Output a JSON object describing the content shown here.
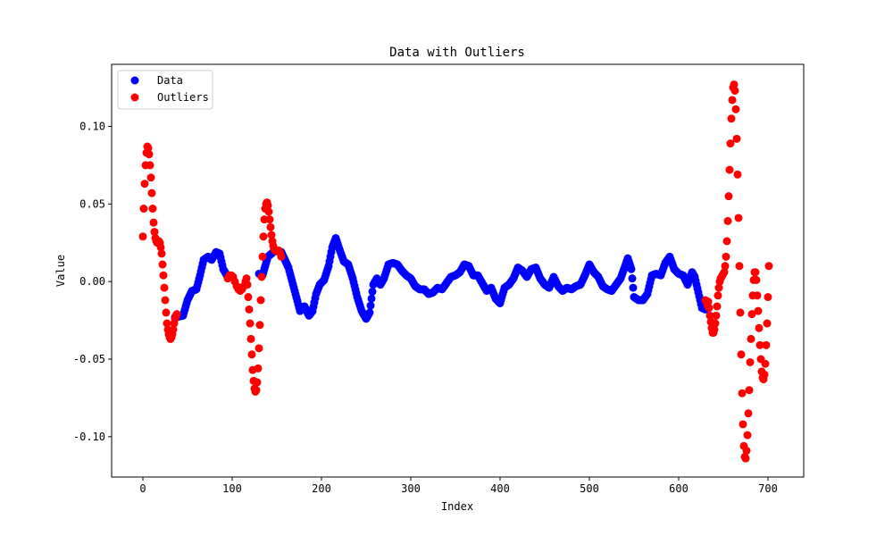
{
  "chart_data": {
    "type": "scatter",
    "title": "Data with Outliers",
    "xlabel": "Index",
    "ylabel": "Value",
    "xlim": [
      -35,
      740
    ],
    "ylim": [
      -0.126,
      0.14
    ],
    "xticks": [
      0,
      100,
      200,
      300,
      400,
      500,
      600,
      700
    ],
    "xtick_labels": [
      "0",
      "100",
      "200",
      "300",
      "400",
      "500",
      "600",
      "700"
    ],
    "yticks": [
      -0.1,
      -0.05,
      0.0,
      0.05,
      0.1
    ],
    "ytick_labels": [
      "-0.10",
      "-0.05",
      "0.00",
      "0.05",
      "0.10"
    ],
    "grid": false,
    "legend_position": "top-left",
    "series": [
      {
        "name": "Data",
        "color": "#0000ff",
        "anchors": [
          [
            36,
            -0.023
          ],
          [
            45,
            -0.022
          ],
          [
            50,
            -0.012
          ],
          [
            55,
            -0.006
          ],
          [
            60,
            -0.005
          ],
          [
            64,
            0.004
          ],
          [
            68,
            0.014
          ],
          [
            73,
            0.016
          ],
          [
            77,
            0.014
          ],
          [
            82,
            0.019
          ],
          [
            86,
            0.018
          ],
          [
            90,
            0.008
          ],
          [
            95,
            0.003
          ],
          [
            130,
            0.005
          ],
          [
            134,
            0.004
          ],
          [
            140,
            0.016
          ],
          [
            148,
            0.02
          ],
          [
            155,
            0.019
          ],
          [
            163,
            0.009
          ],
          [
            170,
            -0.006
          ],
          [
            176,
            -0.019
          ],
          [
            181,
            -0.016
          ],
          [
            186,
            -0.022
          ],
          [
            190,
            -0.019
          ],
          [
            194,
            -0.008
          ],
          [
            198,
            -0.002
          ],
          [
            203,
            0.001
          ],
          [
            208,
            0.01
          ],
          [
            212,
            0.022
          ],
          [
            216,
            0.028
          ],
          [
            220,
            0.021
          ],
          [
            225,
            0.013
          ],
          [
            230,
            0.011
          ],
          [
            235,
            0.002
          ],
          [
            240,
            -0.01
          ],
          [
            245,
            -0.019
          ],
          [
            250,
            -0.024
          ],
          [
            254,
            -0.02
          ],
          [
            258,
            -0.002
          ],
          [
            262,
            0.002
          ],
          [
            266,
            -0.002
          ],
          [
            270,
            0.002
          ],
          [
            275,
            0.011
          ],
          [
            280,
            0.012
          ],
          [
            285,
            0.011
          ],
          [
            290,
            0.007
          ],
          [
            295,
            0.004
          ],
          [
            300,
            0.002
          ],
          [
            305,
            -0.003
          ],
          [
            310,
            -0.005
          ],
          [
            315,
            -0.005
          ],
          [
            320,
            -0.008
          ],
          [
            325,
            -0.007
          ],
          [
            330,
            -0.004
          ],
          [
            335,
            -0.005
          ],
          [
            340,
            -0.001
          ],
          [
            345,
            0.003
          ],
          [
            350,
            0.004
          ],
          [
            355,
            0.006
          ],
          [
            360,
            0.011
          ],
          [
            365,
            0.01
          ],
          [
            370,
            0.004
          ],
          [
            375,
            0.004
          ],
          [
            380,
            -0.001
          ],
          [
            385,
            -0.006
          ],
          [
            390,
            -0.004
          ],
          [
            395,
            -0.011
          ],
          [
            400,
            -0.014
          ],
          [
            405,
            -0.004
          ],
          [
            410,
            -0.002
          ],
          [
            415,
            0.002
          ],
          [
            420,
            0.009
          ],
          [
            425,
            0.007
          ],
          [
            430,
            0.003
          ],
          [
            435,
            0.008
          ],
          [
            440,
            0.009
          ],
          [
            445,
            0.002
          ],
          [
            450,
            -0.002
          ],
          [
            455,
            -0.004
          ],
          [
            460,
            0.003
          ],
          [
            465,
            -0.003
          ],
          [
            470,
            -0.006
          ],
          [
            475,
            -0.004
          ],
          [
            480,
            -0.005
          ],
          [
            485,
            -0.003
          ],
          [
            490,
            -0.002
          ],
          [
            495,
            0.004
          ],
          [
            500,
            0.011
          ],
          [
            505,
            0.006
          ],
          [
            510,
            0.003
          ],
          [
            515,
            -0.003
          ],
          [
            520,
            -0.005
          ],
          [
            525,
            -0.006
          ],
          [
            530,
            -0.002
          ],
          [
            535,
            0.002
          ],
          [
            540,
            0.01
          ],
          [
            543,
            0.015
          ],
          [
            547,
            0.008
          ],
          [
            550,
            -0.01
          ],
          [
            555,
            -0.012
          ],
          [
            560,
            -0.012
          ],
          [
            565,
            -0.008
          ],
          [
            570,
            0.004
          ],
          [
            575,
            0.005
          ],
          [
            580,
            0.004
          ],
          [
            585,
            0.012
          ],
          [
            590,
            0.016
          ],
          [
            595,
            0.008
          ],
          [
            600,
            0.005
          ],
          [
            605,
            0.004
          ],
          [
            610,
            -0.002
          ],
          [
            615,
            0.006
          ],
          [
            618,
            0.003
          ],
          [
            622,
            -0.007
          ],
          [
            626,
            -0.017
          ],
          [
            630,
            -0.018
          ]
        ]
      },
      {
        "name": "Outliers",
        "color": "#ff0000",
        "points": [
          [
            0,
            0.029
          ],
          [
            1,
            0.047
          ],
          [
            2,
            0.063
          ],
          [
            3,
            0.075
          ],
          [
            4,
            0.083
          ],
          [
            5,
            0.087
          ],
          [
            6,
            0.086
          ],
          [
            7,
            0.082
          ],
          [
            8,
            0.075
          ],
          [
            9,
            0.067
          ],
          [
            10,
            0.057
          ],
          [
            11,
            0.047
          ],
          [
            12,
            0.038
          ],
          [
            13,
            0.032
          ],
          [
            14,
            0.028
          ],
          [
            15,
            0.026
          ],
          [
            16,
            0.025
          ],
          [
            17,
            0.025
          ],
          [
            18,
            0.026
          ],
          [
            19,
            0.025
          ],
          [
            20,
            0.022
          ],
          [
            21,
            0.018
          ],
          [
            22,
            0.011
          ],
          [
            23,
            0.004
          ],
          [
            24,
            -0.004
          ],
          [
            25,
            -0.012
          ],
          [
            26,
            -0.02
          ],
          [
            27,
            -0.027
          ],
          [
            28,
            -0.031
          ],
          [
            29,
            -0.034
          ],
          [
            30,
            -0.036
          ],
          [
            31,
            -0.037
          ],
          [
            32,
            -0.036
          ],
          [
            33,
            -0.034
          ],
          [
            34,
            -0.031
          ],
          [
            35,
            -0.027
          ],
          [
            36,
            -0.024
          ],
          [
            37,
            -0.022
          ],
          [
            38,
            -0.021
          ],
          [
            95,
            0.002
          ],
          [
            97,
            0.004
          ],
          [
            99,
            0.004
          ],
          [
            101,
            0.003
          ],
          [
            103,
            0.0
          ],
          [
            105,
            -0.003
          ],
          [
            107,
            -0.005
          ],
          [
            109,
            -0.006
          ],
          [
            111,
            -0.005
          ],
          [
            113,
            -0.003
          ],
          [
            115,
            0.0
          ],
          [
            116,
            0.002
          ],
          [
            117,
            -0.002
          ],
          [
            118,
            -0.01
          ],
          [
            119,
            -0.018
          ],
          [
            120,
            -0.027
          ],
          [
            121,
            -0.037
          ],
          [
            122,
            -0.047
          ],
          [
            123,
            -0.057
          ],
          [
            124,
            -0.064
          ],
          [
            125,
            -0.069
          ],
          [
            126,
            -0.071
          ],
          [
            127,
            -0.07
          ],
          [
            128,
            -0.065
          ],
          [
            129,
            -0.056
          ],
          [
            130,
            -0.043
          ],
          [
            131,
            -0.028
          ],
          [
            132,
            -0.012
          ],
          [
            133,
            0.003
          ],
          [
            134,
            0.016
          ],
          [
            135,
            0.029
          ],
          [
            136,
            0.04
          ],
          [
            137,
            0.047
          ],
          [
            138,
            0.05
          ],
          [
            139,
            0.051
          ],
          [
            140,
            0.049
          ],
          [
            141,
            0.045
          ],
          [
            142,
            0.04
          ],
          [
            143,
            0.035
          ],
          [
            144,
            0.03
          ],
          [
            145,
            0.026
          ],
          [
            146,
            0.023
          ],
          [
            147,
            0.021
          ],
          [
            148,
            0.02
          ],
          [
            149,
            0.02
          ],
          [
            150,
            0.02
          ],
          [
            151,
            0.02
          ],
          [
            152,
            0.02
          ],
          [
            153,
            0.019
          ],
          [
            154,
            0.018
          ],
          [
            155,
            0.016
          ],
          [
            630,
            -0.012
          ],
          [
            631,
            -0.013
          ],
          [
            632,
            -0.015
          ],
          [
            633,
            -0.013
          ],
          [
            634,
            -0.017
          ],
          [
            635,
            -0.022
          ],
          [
            636,
            -0.026
          ],
          [
            637,
            -0.03
          ],
          [
            638,
            -0.033
          ],
          [
            639,
            -0.033
          ],
          [
            640,
            -0.031
          ],
          [
            641,
            -0.027
          ],
          [
            642,
            -0.022
          ],
          [
            643,
            -0.016
          ],
          [
            644,
            -0.009
          ],
          [
            645,
            -0.004
          ],
          [
            646,
            0.0
          ],
          [
            647,
            0.002
          ],
          [
            648,
            0.003
          ],
          [
            649,
            0.004
          ],
          [
            650,
            0.005
          ],
          [
            651,
            0.006
          ],
          [
            652,
            0.01
          ],
          [
            653,
            0.016
          ],
          [
            654,
            0.026
          ],
          [
            655,
            0.039
          ],
          [
            656,
            0.055
          ],
          [
            657,
            0.072
          ],
          [
            658,
            0.089
          ],
          [
            659,
            0.105
          ],
          [
            660,
            0.117
          ],
          [
            661,
            0.125
          ],
          [
            662,
            0.127
          ],
          [
            663,
            0.123
          ],
          [
            664,
            0.111
          ],
          [
            665,
            0.092
          ],
          [
            666,
            0.069
          ],
          [
            667,
            0.041
          ],
          [
            668,
            0.01
          ],
          [
            669,
            -0.02
          ],
          [
            670,
            -0.047
          ],
          [
            671,
            -0.072
          ],
          [
            672,
            -0.092
          ],
          [
            673,
            -0.106
          ],
          [
            674,
            -0.113
          ],
          [
            675,
            -0.114
          ],
          [
            676,
            -0.109
          ],
          [
            677,
            -0.099
          ],
          [
            678,
            -0.085
          ],
          [
            679,
            -0.07
          ],
          [
            680,
            -0.052
          ],
          [
            681,
            -0.037
          ],
          [
            682,
            -0.021
          ],
          [
            683,
            -0.009
          ],
          [
            684,
            0.001
          ],
          [
            685,
            0.006
          ],
          [
            686,
            0.006
          ],
          [
            687,
            0.001
          ],
          [
            688,
            -0.009
          ],
          [
            689,
            -0.019
          ],
          [
            690,
            -0.03
          ],
          [
            691,
            -0.041
          ],
          [
            692,
            -0.05
          ],
          [
            693,
            -0.058
          ],
          [
            694,
            -0.062
          ],
          [
            695,
            -0.063
          ],
          [
            696,
            -0.06
          ],
          [
            697,
            -0.053
          ],
          [
            698,
            -0.041
          ],
          [
            699,
            -0.027
          ],
          [
            700,
            -0.01
          ],
          [
            701,
            0.01
          ]
        ]
      }
    ]
  }
}
